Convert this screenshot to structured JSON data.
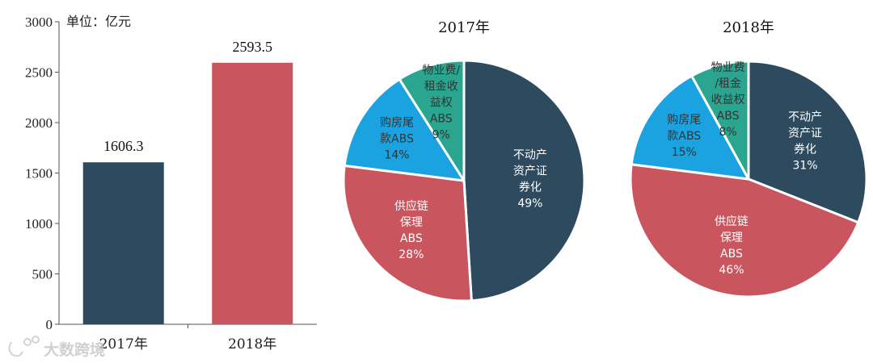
{
  "watermark": "大数跨境",
  "chart_data": [
    {
      "type": "bar",
      "unit_label": "单位：亿元",
      "categories": [
        "2017年",
        "2018年"
      ],
      "values": [
        1606.3,
        2593.5
      ],
      "value_labels": [
        "1606.3",
        "2593.5"
      ],
      "colors": [
        "#2e4a5f",
        "#c9565e"
      ],
      "ylim": [
        0,
        3000
      ],
      "yticks": [
        0,
        500,
        1000,
        1500,
        2000,
        2500,
        3000
      ],
      "grid": false
    },
    {
      "type": "pie",
      "title": "2017年",
      "slices": [
        {
          "label": [
            "不动产",
            "资产证",
            "券化"
          ],
          "pct_text": "49%",
          "value": 49,
          "color": "#2e4a5f",
          "text_color": "#ffffff"
        },
        {
          "label": [
            "供应链",
            "保理",
            "ABS"
          ],
          "pct_text": "28%",
          "value": 28,
          "color": "#c9565e",
          "text_color": "#ffffff"
        },
        {
          "label": [
            "购房尾",
            "款ABS"
          ],
          "pct_text": "14%",
          "value": 14,
          "color": "#1aa3e0",
          "text_color": "#333333"
        },
        {
          "label": [
            "物业费/",
            "租金收",
            "益权",
            "ABS"
          ],
          "pct_text": "9%",
          "value": 9,
          "color": "#2aa58f",
          "text_color": "#333333"
        }
      ]
    },
    {
      "type": "pie",
      "title": "2018年",
      "slices": [
        {
          "label": [
            "不动产",
            "资产证",
            "券化"
          ],
          "pct_text": "31%",
          "value": 31,
          "color": "#2e4a5f",
          "text_color": "#ffffff"
        },
        {
          "label": [
            "供应链",
            "保理",
            "ABS"
          ],
          "pct_text": "46%",
          "value": 46,
          "color": "#c9565e",
          "text_color": "#ffffff"
        },
        {
          "label": [
            "购房尾",
            "款ABS"
          ],
          "pct_text": "15%",
          "value": 15,
          "color": "#1aa3e0",
          "text_color": "#333333"
        },
        {
          "label": [
            "物业费",
            "/租金",
            "收益权",
            "ABS"
          ],
          "pct_text": "8%",
          "value": 8,
          "color": "#2aa58f",
          "text_color": "#333333"
        }
      ]
    }
  ]
}
